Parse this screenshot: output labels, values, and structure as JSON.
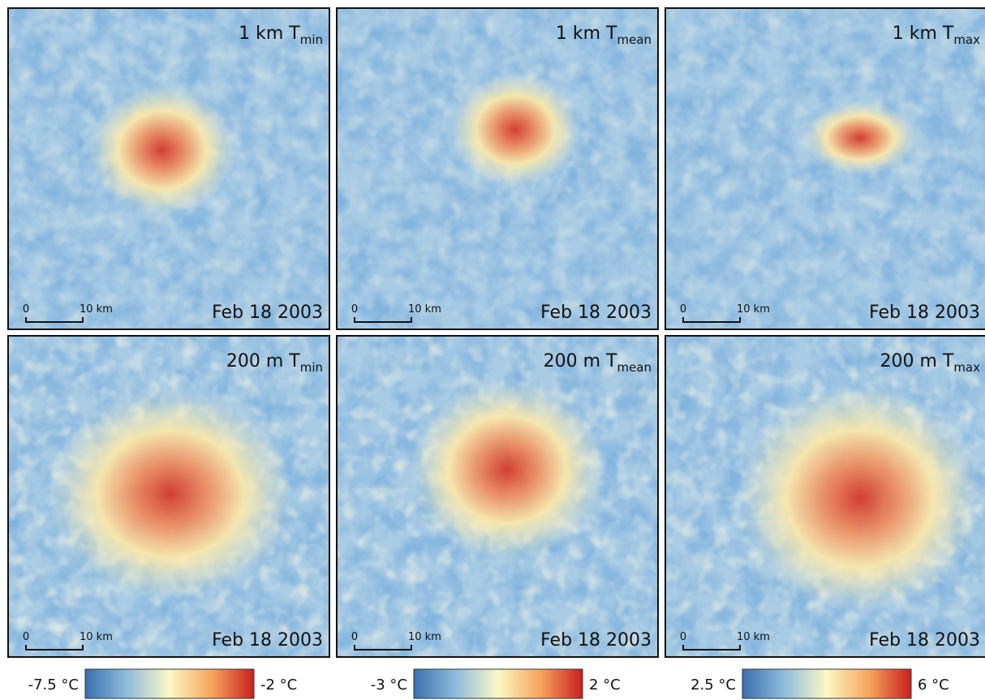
{
  "panels": [
    {
      "title": "1 km T",
      "subscript": "min",
      "date": "Feb 18 2003",
      "scale_start": "0",
      "scale_end": "10 km"
    },
    {
      "title": "1 km T",
      "subscript": "mean",
      "date": "Feb 18 2003",
      "scale_start": "0",
      "scale_end": "10 km"
    },
    {
      "title": "1 km T",
      "subscript": "max",
      "date": "Feb 18 2003",
      "scale_start": "0",
      "scale_end": "10 km"
    },
    {
      "title": "200 m T",
      "subscript": "min",
      "date": "Feb 18 2003",
      "scale_start": "0",
      "scale_end": "10 km"
    },
    {
      "title": "200 m T",
      "subscript": "mean",
      "date": "Feb 18 2003",
      "scale_start": "0",
      "scale_end": "10 km"
    },
    {
      "title": "200 m T",
      "subscript": "max",
      "date": "Feb 18 2003",
      "scale_start": "0",
      "scale_end": "10 km"
    }
  ],
  "colorbars": [
    {
      "min": "-7.5 °C",
      "max": "-2 °C"
    },
    {
      "min": "-3 °C",
      "max": "2 °C"
    },
    {
      "min": "2.5 °C",
      "max": "6  °C"
    }
  ]
}
